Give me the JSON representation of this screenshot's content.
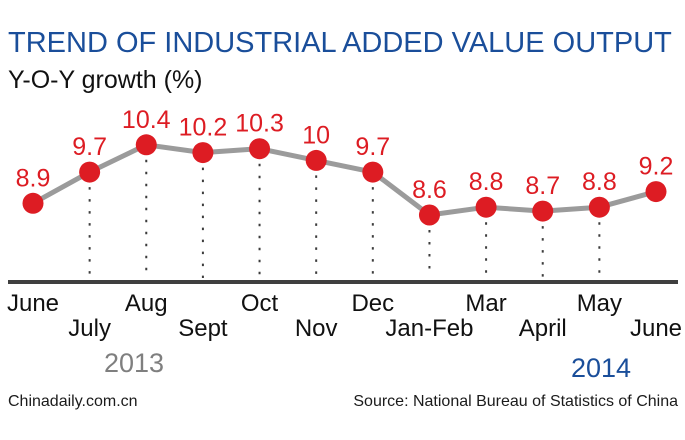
{
  "header": {
    "title": "TREND OF INDUSTRIAL ADDED VALUE OUTPUT",
    "subtitle": "Y-O-Y growth (%)"
  },
  "chart_data": {
    "type": "line",
    "title": "TREND OF INDUSTRIAL ADDED VALUE OUTPUT",
    "ylabel": "Y-O-Y growth (%)",
    "xlabel": "",
    "categories": [
      "June",
      "July",
      "Aug",
      "Sept",
      "Oct",
      "Nov",
      "Dec",
      "Jan-Feb",
      "Mar",
      "April",
      "May",
      "June"
    ],
    "values": [
      8.9,
      9.7,
      10.4,
      10.2,
      10.3,
      10,
      9.7,
      8.6,
      8.8,
      8.7,
      8.8,
      9.2
    ],
    "point_labels": [
      "8.9",
      "9.7",
      "10.4",
      "10.2",
      "10.3",
      "10",
      "9.7",
      "8.6",
      "8.8",
      "8.7",
      "8.8",
      "9.2"
    ],
    "ylim": [
      8.0,
      11.0
    ],
    "y_axis_visible": false,
    "x_label_rows": "alternating",
    "grid": "dotted vertical droplines from interior points to x-axis",
    "legend_position": "none",
    "years": [
      {
        "label": "2013"
      },
      {
        "label": "2014"
      }
    ]
  },
  "footer": {
    "credit": "Chinadaily.com.cn",
    "source": "Source: National Bureau of Statistics of China"
  },
  "colors": {
    "title_blue": "#1a4e9a",
    "point_red": "#dd1c23",
    "value_label_red": "#dd1c23",
    "line_gray": "#9b9b9b",
    "axis_dark": "#3f3f3f",
    "dropline_gray": "#3c3c3c",
    "month_black": "#111111",
    "year_2013_gray": "#7f7f7f",
    "year_2014_blue": "#1a4e9a"
  }
}
